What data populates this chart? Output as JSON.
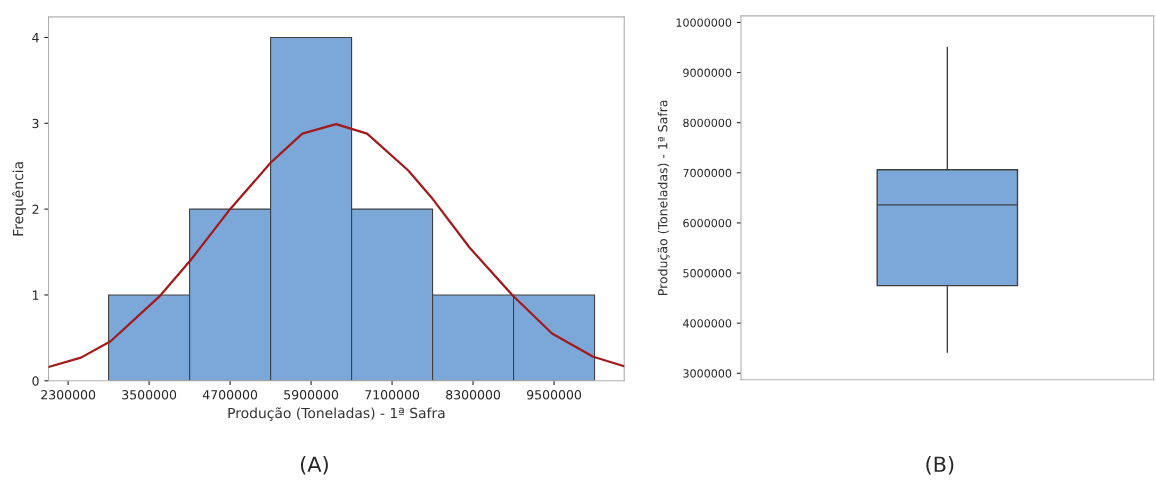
{
  "chart_data": [
    {
      "type": "histogram",
      "xlabel": "Produção (Toneladas) - 1ª Safra",
      "ylabel": "Frequência",
      "bins": [
        2900000,
        4100000,
        5300000,
        6500000,
        7700000,
        8900000,
        10100000
      ],
      "values": [
        1,
        2,
        4,
        2,
        1,
        1
      ],
      "color": "#7ba7d9",
      "series": [
        {
          "type": "line",
          "color": "#a31a1a",
          "x": [
            2010000,
            2490000,
            2930000,
            3650000,
            4120000,
            4680000,
            5300000,
            5770000,
            6270000,
            6730000,
            7340000,
            7700000,
            8250000,
            8880000,
            9470000,
            10080000,
            10540000
          ],
          "values": [
            0.16,
            0.27,
            0.46,
            0.98,
            1.41,
            1.98,
            2.54,
            2.88,
            2.99,
            2.88,
            2.45,
            2.12,
            1.55,
            1.0,
            0.55,
            0.28,
            0.17
          ]
        }
      ],
      "xlim": [
        2010000,
        10540000
      ],
      "xticks": [
        2300000,
        3500000,
        4700000,
        5900000,
        7100000,
        8300000,
        9500000
      ],
      "ylim": [
        0,
        4.24
      ],
      "yticks": [
        0,
        1,
        2,
        3,
        4
      ],
      "grid": false,
      "annotations": [
        "(A)"
      ]
    },
    {
      "type": "box",
      "ylabel": "Produção (Toneladas) - 1ª Safra",
      "categories": [
        null
      ],
      "color": "#7ba7d9",
      "boxes": [
        {
          "low": 3420000,
          "q1": 4750000,
          "median": 6360000,
          "q3": 7060000,
          "high": 9500000
        }
      ],
      "ylim": [
        2870000,
        10130000
      ],
      "yticks": [
        3000000,
        4000000,
        5000000,
        6000000,
        7000000,
        8000000,
        9000000,
        10000000
      ],
      "tick_labels": "y",
      "grid": false,
      "annotations": [
        "(B)"
      ]
    }
  ]
}
